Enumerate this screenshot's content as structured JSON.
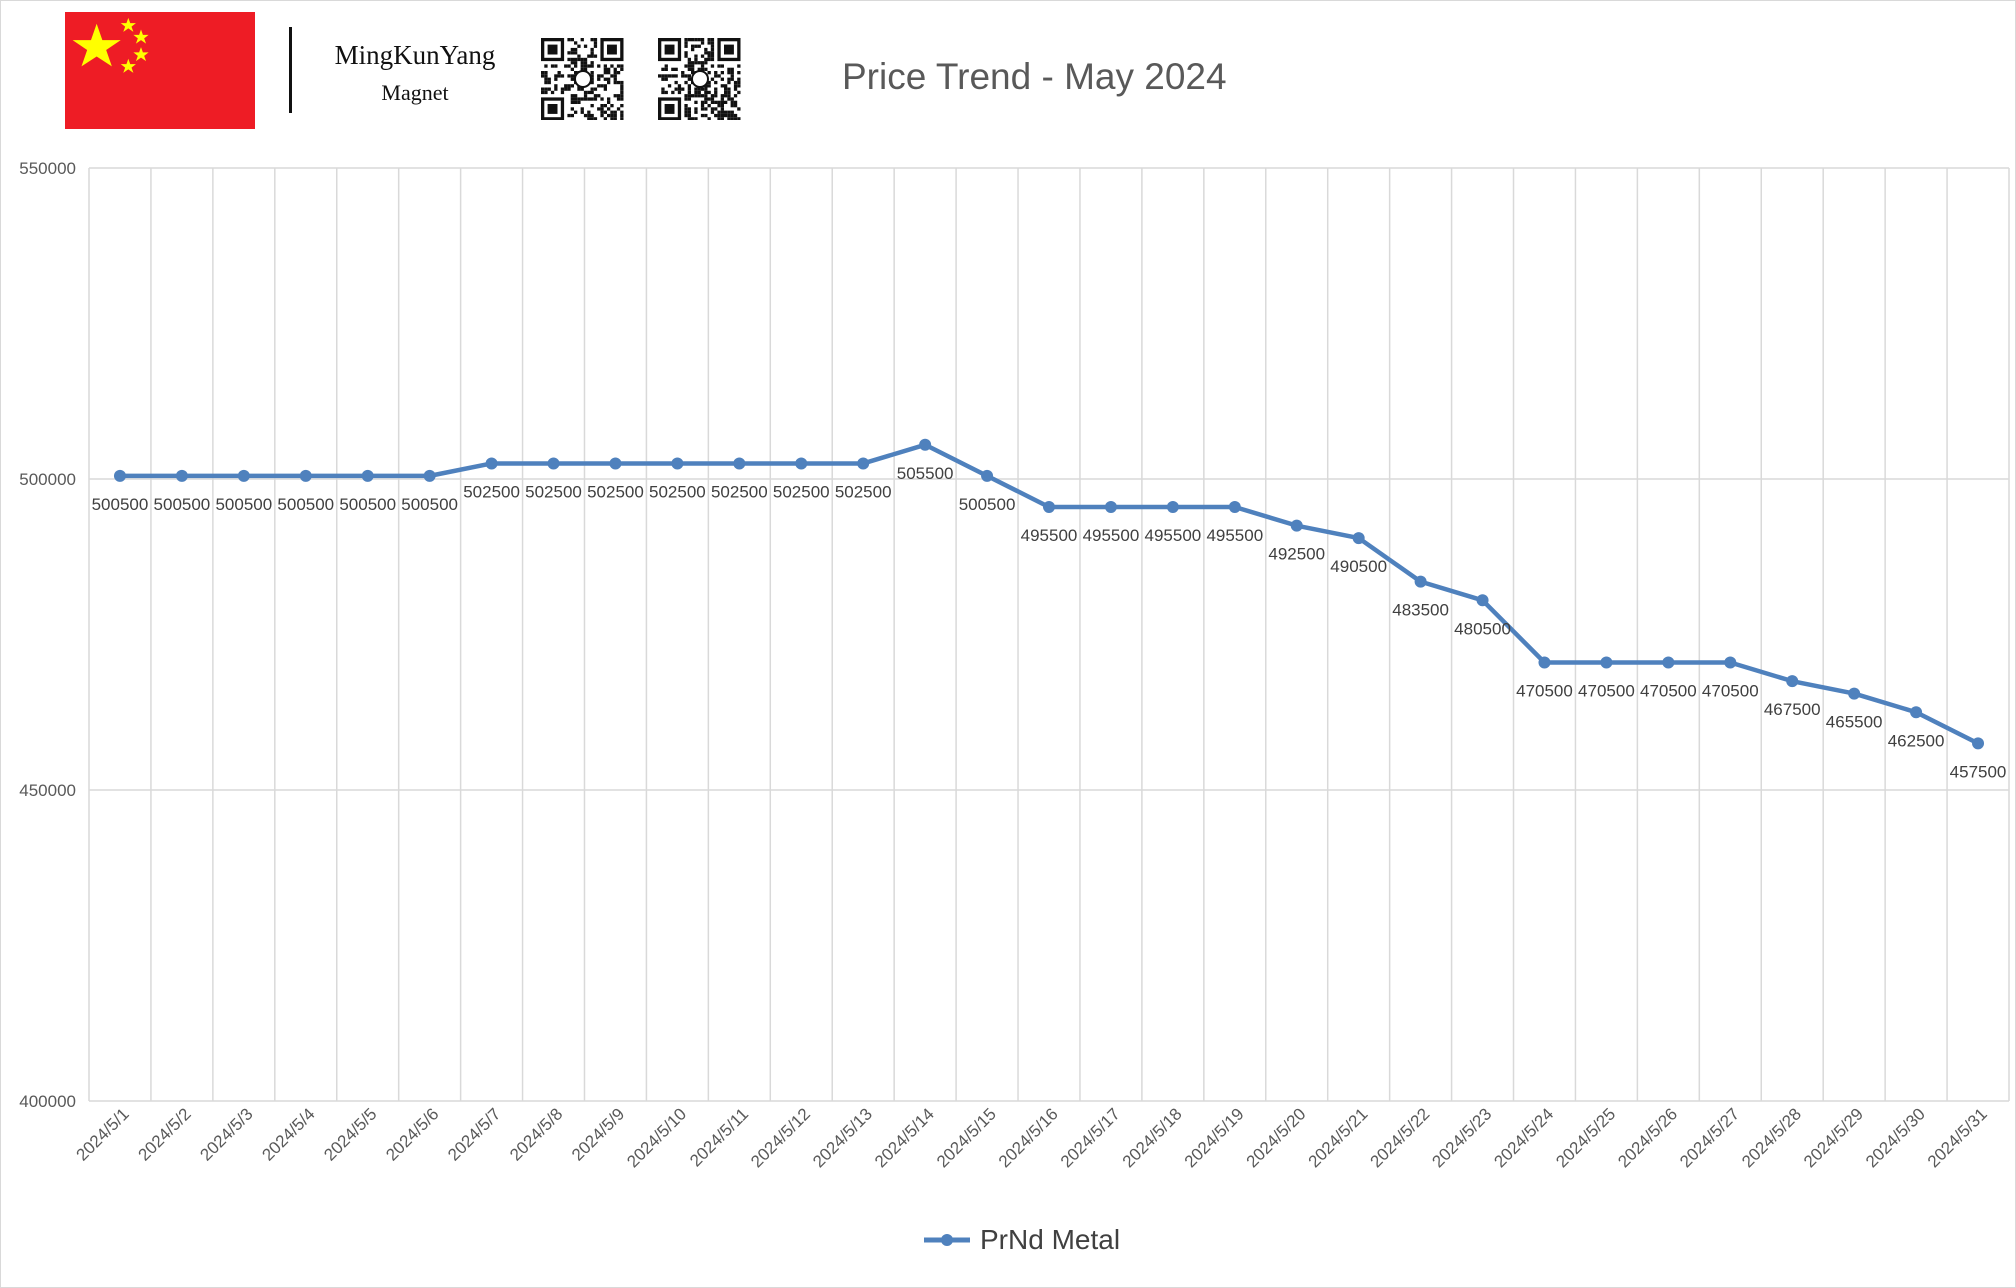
{
  "header": {
    "logo_name": "MingKunYang",
    "logo_sub": "Magnet"
  },
  "colors": {
    "series": "#4f81bd",
    "grid": "#d9d9d9",
    "flag_red": "#ee1c25",
    "flag_star": "#ffff00",
    "label_text": "#404040"
  },
  "icons": [
    "china-flag-icon",
    "whatsapp-qr-icon",
    "facebook-qr-icon"
  ],
  "chart_data": {
    "type": "line",
    "title": "Price Trend - May 2024",
    "xlabel": "",
    "ylabel": "",
    "ylim": [
      400000,
      550000
    ],
    "yticks": [
      400000,
      450000,
      500000,
      550000
    ],
    "grid": true,
    "legend_position": "bottom",
    "categories": [
      "2024/5/1",
      "2024/5/2",
      "2024/5/3",
      "2024/5/4",
      "2024/5/5",
      "2024/5/6",
      "2024/5/7",
      "2024/5/8",
      "2024/5/9",
      "2024/5/10",
      "2024/5/11",
      "2024/5/12",
      "2024/5/13",
      "2024/5/14",
      "2024/5/15",
      "2024/5/16",
      "2024/5/17",
      "2024/5/18",
      "2024/5/19",
      "2024/5/20",
      "2024/5/21",
      "2024/5/22",
      "2024/5/23",
      "2024/5/24",
      "2024/5/25",
      "2024/5/26",
      "2024/5/27",
      "2024/5/28",
      "2024/5/29",
      "2024/5/30",
      "2024/5/31"
    ],
    "series": [
      {
        "name": "PrNd Metal",
        "values": [
          500500,
          500500,
          500500,
          500500,
          500500,
          500500,
          502500,
          502500,
          502500,
          502500,
          502500,
          502500,
          502500,
          505500,
          500500,
          495500,
          495500,
          495500,
          495500,
          492500,
          490500,
          483500,
          480500,
          470500,
          470500,
          470500,
          470500,
          467500,
          465500,
          462500,
          457500
        ]
      }
    ]
  }
}
